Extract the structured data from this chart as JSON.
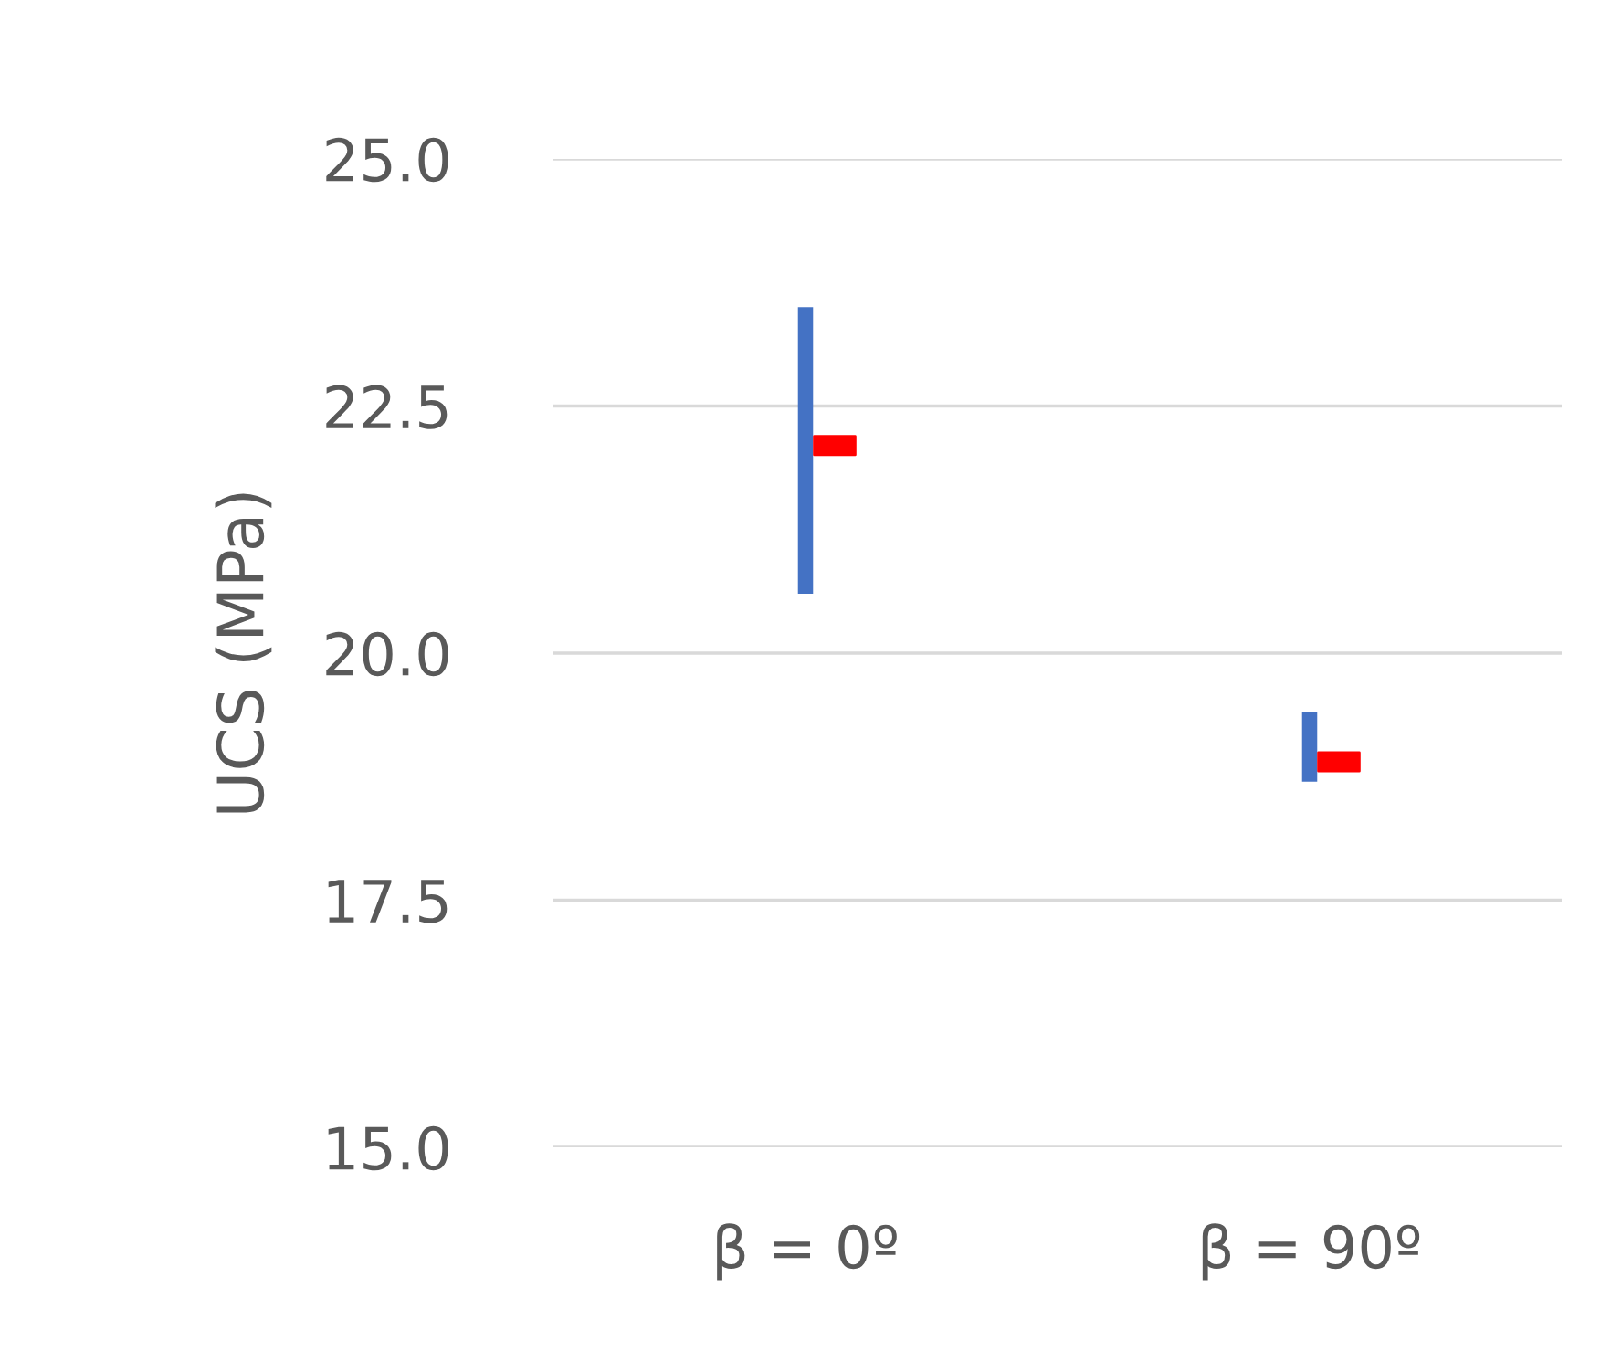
{
  "chart_data": {
    "type": "bar",
    "ylabel": "UCS (MPa)",
    "categories": [
      "β = 0º",
      "β = 90º"
    ],
    "series": [
      {
        "color": "#4472c4",
        "values": [
          2.9,
          0.7
        ],
        "base": [
          20.6,
          18.7
        ]
      },
      {
        "type": "scatter",
        "color": "#ff0000",
        "x": [
          "β = 0º",
          "β = 90º"
        ],
        "values": [
          22.1,
          18.9
        ],
        "marker": "square"
      }
    ],
    "ylim": [
      15,
      25
    ],
    "yticks": [
      {
        "value": 15,
        "label": "15.0"
      },
      {
        "value": 17.5,
        "label": "17.5"
      },
      {
        "value": 20,
        "label": "20.0"
      },
      {
        "value": 22.5,
        "label": "22.5"
      },
      {
        "value": 25,
        "label": "25.0"
      }
    ],
    "grid": "y"
  }
}
